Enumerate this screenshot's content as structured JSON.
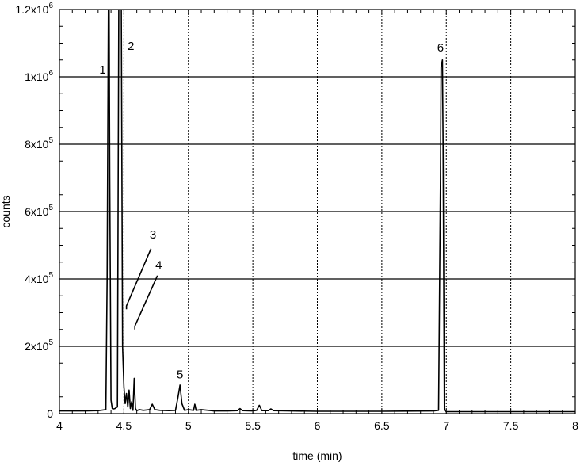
{
  "chart_data": {
    "type": "line",
    "xlabel": "time (min)",
    "ylabel": "counts",
    "xlim": [
      4,
      8
    ],
    "ylim": [
      0,
      1200000
    ],
    "x_ticks": [
      4,
      4.5,
      5,
      5.5,
      6,
      6.5,
      7,
      7.5,
      8
    ],
    "x_tick_labels": [
      "4",
      "4.5",
      "5",
      "5.5",
      "6",
      "6.5",
      "7",
      "7.5",
      "8"
    ],
    "y_ticks": [
      0,
      200000,
      400000,
      600000,
      800000,
      1000000,
      1200000
    ],
    "y_tick_labels": [
      {
        "base": "0",
        "exp": ""
      },
      {
        "base": "2x10",
        "exp": "5"
      },
      {
        "base": "4x10",
        "exp": "5"
      },
      {
        "base": "6x10",
        "exp": "5"
      },
      {
        "base": "8x10",
        "exp": "5"
      },
      {
        "base": "1x10",
        "exp": "6"
      },
      {
        "base": "1.2x10",
        "exp": "6"
      }
    ],
    "grid": true,
    "series": [
      {
        "color": "#000000",
        "x": [
          4.0,
          4.1,
          4.2,
          4.3,
          4.36,
          4.37,
          4.38,
          4.385,
          4.39,
          4.4,
          4.41,
          4.42,
          4.43,
          4.44,
          4.45,
          4.46,
          4.47,
          4.48,
          4.49,
          4.5,
          4.51,
          4.52,
          4.53,
          4.54,
          4.55,
          4.56,
          4.57,
          4.58,
          4.59,
          4.6,
          4.62,
          4.65,
          4.7,
          4.72,
          4.74,
          4.78,
          4.85,
          4.9,
          4.92,
          4.935,
          4.95,
          4.97,
          5.0,
          5.04,
          5.05,
          5.06,
          5.1,
          5.2,
          5.3,
          5.38,
          5.4,
          5.42,
          5.5,
          5.53,
          5.55,
          5.57,
          5.62,
          5.64,
          5.66,
          5.8,
          6.0,
          6.5,
          6.9,
          6.94,
          6.955,
          6.96,
          6.97,
          6.975,
          6.985,
          7.0,
          7.5,
          8.0
        ],
        "y": [
          8000,
          8000,
          8000,
          9000,
          12000,
          400000,
          1200000,
          1200000,
          700000,
          40000,
          15000,
          14000,
          15000,
          18000,
          20000,
          1200000,
          1200000,
          1200000,
          200000,
          80000,
          30000,
          60000,
          20000,
          70000,
          15000,
          35000,
          10000,
          105000,
          15000,
          9000,
          12000,
          10000,
          12000,
          28000,
          12000,
          10000,
          9000,
          10000,
          50000,
          85000,
          30000,
          10000,
          12000,
          10000,
          28000,
          10000,
          12000,
          8000,
          8000,
          9000,
          15000,
          9000,
          8000,
          10000,
          25000,
          9000,
          9000,
          14000,
          9000,
          8000,
          7000,
          7000,
          8000,
          10000,
          700000,
          1030000,
          1050000,
          800000,
          10000,
          6000,
          6000,
          6000
        ]
      }
    ],
    "peak_labels": [
      {
        "text": "1",
        "x": 4.335,
        "y": 1010000
      },
      {
        "text": "2",
        "x": 4.555,
        "y": 1080000
      },
      {
        "text": "3",
        "x": 4.725,
        "y": 520000
      },
      {
        "text": "4",
        "x": 4.77,
        "y": 430000
      },
      {
        "text": "5",
        "x": 4.935,
        "y": 105000
      },
      {
        "text": "6",
        "x": 6.955,
        "y": 1075000
      }
    ],
    "leader_lines": [
      {
        "points": [
          [
            4.52,
            310000
          ],
          [
            4.52,
            320000
          ],
          [
            4.71,
            490000
          ]
        ]
      },
      {
        "points": [
          [
            4.585,
            250000
          ],
          [
            4.585,
            260000
          ],
          [
            4.76,
            410000
          ]
        ]
      }
    ]
  }
}
